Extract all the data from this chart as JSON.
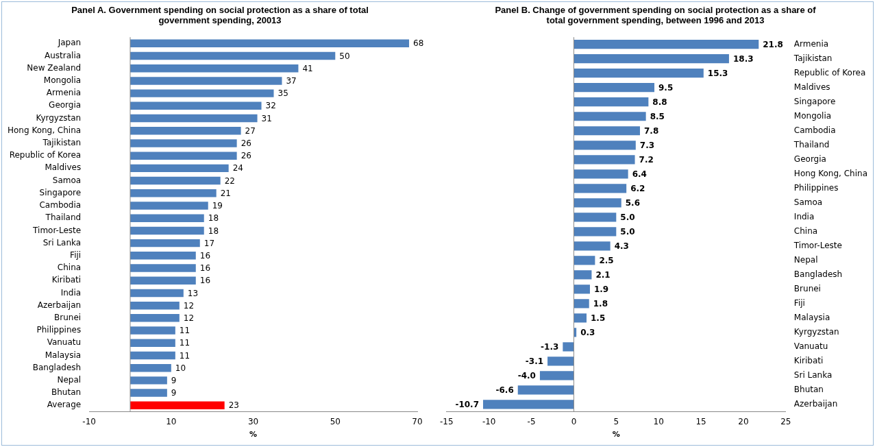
{
  "chart_data": [
    {
      "type": "bar",
      "orientation": "horizontal",
      "title": "Panel A. Government spending on social protection as a share of total government spending, 20013",
      "xlabel": "%",
      "categories": [
        "Japan",
        "Australia",
        "New Zealand",
        "Mongolia",
        "Armenia",
        "Georgia",
        "Kyrgyzstan",
        "Hong Kong, China",
        "Tajikistan",
        "Republic of Korea",
        "Maldives",
        "Samoa",
        "Singapore",
        "Cambodia",
        "Thailand",
        "Timor-Leste",
        "Sri Lanka",
        "Fiji",
        "China",
        "Kiribati",
        "India",
        "Azerbaijan",
        "Brunei",
        "Philippines",
        "Vanuatu",
        "Malaysia",
        "Bangladesh",
        "Nepal",
        "Bhutan",
        "Average"
      ],
      "values": [
        68,
        50,
        41,
        37,
        35,
        32,
        31,
        27,
        26,
        26,
        24,
        22,
        21,
        19,
        18,
        18,
        17,
        16,
        16,
        16,
        13,
        12,
        12,
        11,
        11,
        11,
        10,
        9,
        9,
        23
      ],
      "colors": [
        "#4f81bd",
        "#4f81bd",
        "#4f81bd",
        "#4f81bd",
        "#4f81bd",
        "#4f81bd",
        "#4f81bd",
        "#4f81bd",
        "#4f81bd",
        "#4f81bd",
        "#4f81bd",
        "#4f81bd",
        "#4f81bd",
        "#4f81bd",
        "#4f81bd",
        "#4f81bd",
        "#4f81bd",
        "#4f81bd",
        "#4f81bd",
        "#4f81bd",
        "#4f81bd",
        "#4f81bd",
        "#4f81bd",
        "#4f81bd",
        "#4f81bd",
        "#4f81bd",
        "#4f81bd",
        "#4f81bd",
        "#4f81bd",
        "#ff0000"
      ],
      "data_labels": true,
      "ref_lines": [
        {
          "axis": "x",
          "value": 0,
          "color": "#888888"
        }
      ],
      "xlim": [
        -10,
        70
      ],
      "xticks": [
        -10,
        10,
        30,
        50,
        70
      ],
      "grid": false,
      "legend": false
    },
    {
      "type": "bar",
      "orientation": "horizontal",
      "title": "Panel B. Change of government spending on social protection as a share of total government spending, between 1996 and 2013",
      "xlabel": "%",
      "categories": [
        "Armenia",
        "Tajikistan",
        "Republic of Korea",
        "Maldives",
        "Singapore",
        "Mongolia",
        "Cambodia",
        "Thailand",
        "Georgia",
        "Hong Kong, China",
        "Philippines",
        "Samoa",
        "India",
        "China",
        "Timor-Leste",
        "Nepal",
        "Bangladesh",
        "Brunei",
        "Fiji",
        "Malaysia",
        "Kyrgyzstan",
        "Vanuatu",
        "Kiribati",
        "Sri Lanka",
        "Bhutan",
        "Azerbaijan"
      ],
      "values": [
        21.8,
        18.3,
        15.3,
        9.5,
        8.8,
        8.5,
        7.8,
        7.3,
        7.2,
        6.4,
        6.2,
        5.6,
        5.0,
        5.0,
        4.3,
        2.5,
        2.1,
        1.9,
        1.8,
        1.5,
        0.3,
        -1.3,
        -3.1,
        -4.0,
        -6.6,
        -10.7
      ],
      "value_labels": [
        "21.8",
        "18.3",
        "15.3",
        "9.5",
        "8.8",
        "8.5",
        "7.8",
        "7.3",
        "7.2",
        "6.4",
        "6.2",
        "5.6",
        "5.0",
        "5.0",
        "4.3",
        "2.5",
        "2.1",
        "1.9",
        "1.8",
        "1.5",
        "0.3",
        "-1.3",
        "-3.1",
        "-4.0",
        "-6.6",
        "-10.7"
      ],
      "color": "#4f81bd",
      "ref_lines": [
        {
          "axis": "x",
          "value": 0,
          "color": "#888888"
        }
      ],
      "xlim": [
        -15,
        25
      ],
      "xticks": [
        -15,
        -10,
        -5,
        0,
        5,
        10,
        15,
        20,
        25
      ],
      "grid": false,
      "legend": false
    }
  ]
}
